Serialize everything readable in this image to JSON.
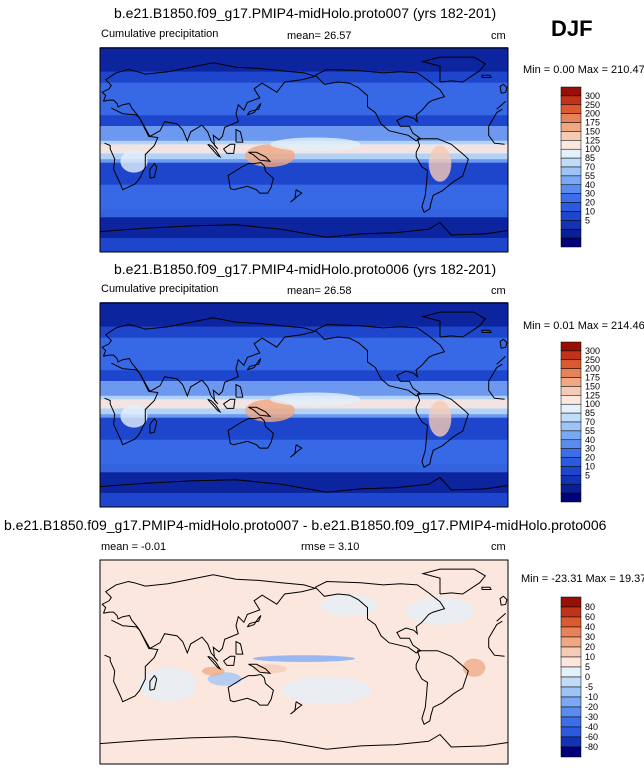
{
  "season": "DJF",
  "palettes": {
    "precip": [
      "#000078",
      "#0a1e96",
      "#1432b4",
      "#1e46cc",
      "#2a5ade",
      "#3c6eea",
      "#5a8cf0",
      "#7aa8f4",
      "#9cc4f6",
      "#c0dcf8",
      "#e4f0fa",
      "#fbe7de",
      "#f6cbb6",
      "#f0a882",
      "#e8825a",
      "#da5a32",
      "#c0321a",
      "#961008"
    ],
    "diff": [
      "#000078",
      "#1432b4",
      "#2a5ade",
      "#3c6eea",
      "#5a8cf0",
      "#7aa8f4",
      "#9cc4f6",
      "#c0dcf8",
      "#e4f0fa",
      "#fbe7de",
      "#f6cbb6",
      "#f0a882",
      "#e8825a",
      "#da5a32",
      "#c0321a",
      "#961008"
    ]
  },
  "panels": [
    {
      "title": "b.e21.B1850.f09_g17.PMIP4-midHolo.proto007 (yrs 182-201)",
      "variable": "Cumulative precipitation",
      "mean": "mean=  26.57",
      "units": "cm",
      "range": "Min =   0.00 Max = 210.47",
      "levels": [
        "300",
        "250",
        "200",
        "175",
        "150",
        "125",
        "100",
        "85",
        "70",
        "55",
        "40",
        "30",
        "20",
        "10",
        "5"
      ]
    },
    {
      "title": "b.e21.B1850.f09_g17.PMIP4-midHolo.proto006 (yrs 182-201)",
      "variable": "Cumulative precipitation",
      "mean": "mean=  26.58",
      "units": "cm",
      "range": "Min =   0.01 Max = 214.46",
      "levels": [
        "300",
        "250",
        "200",
        "175",
        "150",
        "125",
        "100",
        "85",
        "70",
        "55",
        "40",
        "30",
        "20",
        "10",
        "5"
      ]
    },
    {
      "title": "b.e21.B1850.f09_g17.PMIP4-midHolo.proto007 - b.e21.B1850.f09_g17.PMIP4-midHolo.proto006",
      "mean": "mean =  -0.01",
      "rmse": "rmse =   3.10",
      "units": "cm",
      "range": "Min = -23.31 Max =  19.37",
      "levels": [
        "80",
        "60",
        "40",
        "30",
        "20",
        "10",
        "5",
        "0",
        "-5",
        "-10",
        "-20",
        "-30",
        "-40",
        "-60",
        "-80"
      ]
    }
  ]
}
